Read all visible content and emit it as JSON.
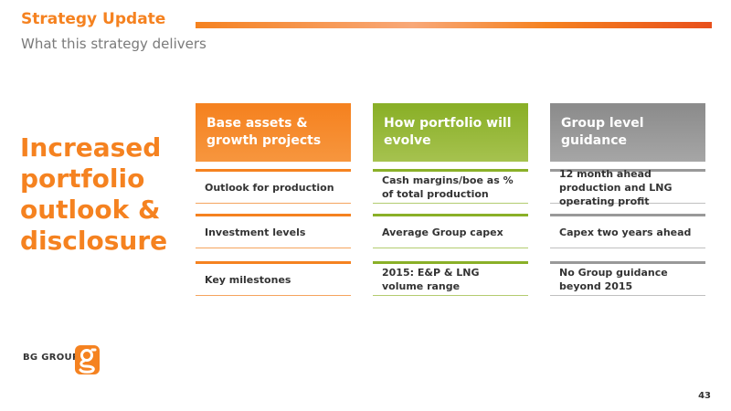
{
  "header": {
    "title": "Strategy Update",
    "subtitle": "What this strategy delivers"
  },
  "headline": "Increased portfolio outlook & disclosure",
  "columns": [
    {
      "heading": "Base assets & growth projects",
      "color": "#f58220",
      "rows": [
        "Outlook for production",
        "Investment levels",
        "Key milestones"
      ]
    },
    {
      "heading": "How portfolio will evolve",
      "color": "#8ab028",
      "rows": [
        "Cash margins/boe as % of total production",
        "Average Group capex",
        "2015: E&P & LNG volume range"
      ]
    },
    {
      "heading": "Group level guidance",
      "color": "#999999",
      "rows": [
        "12 month ahead production and LNG operating profit",
        "Capex two years ahead",
        "No Group guidance beyond 2015"
      ]
    }
  ],
  "footer": {
    "logo_text": "BG GROUP",
    "logo_icon": "bg-g-logo-icon",
    "page_number": "43"
  }
}
